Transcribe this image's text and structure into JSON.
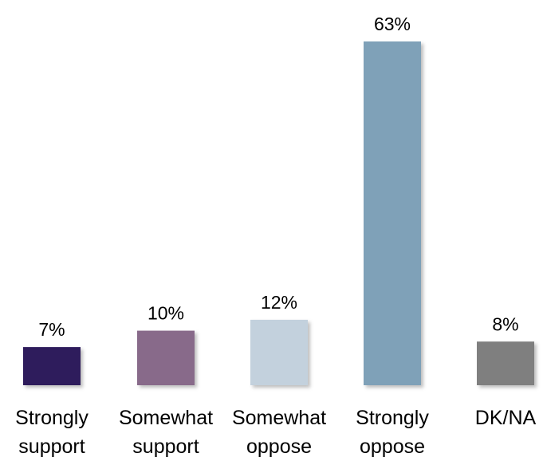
{
  "chart_data": {
    "type": "bar",
    "title": "",
    "xlabel": "",
    "ylabel": "",
    "ylim": [
      0,
      63
    ],
    "grid": false,
    "legend": "none",
    "categories": [
      [
        "Strongly",
        "support"
      ],
      [
        "Somewhat",
        "support"
      ],
      [
        "Somewhat",
        "oppose"
      ],
      [
        "Strongly",
        "oppose"
      ],
      [
        "DK/NA"
      ]
    ],
    "values": [
      7,
      10,
      12,
      63,
      8
    ],
    "value_labels": [
      "7%",
      "10%",
      "12%",
      "63%",
      "8%"
    ],
    "colors": [
      "#2e1a5c",
      "#886a8a",
      "#c3d1dd",
      "#7fa1b8",
      "#7f7f7f"
    ]
  }
}
